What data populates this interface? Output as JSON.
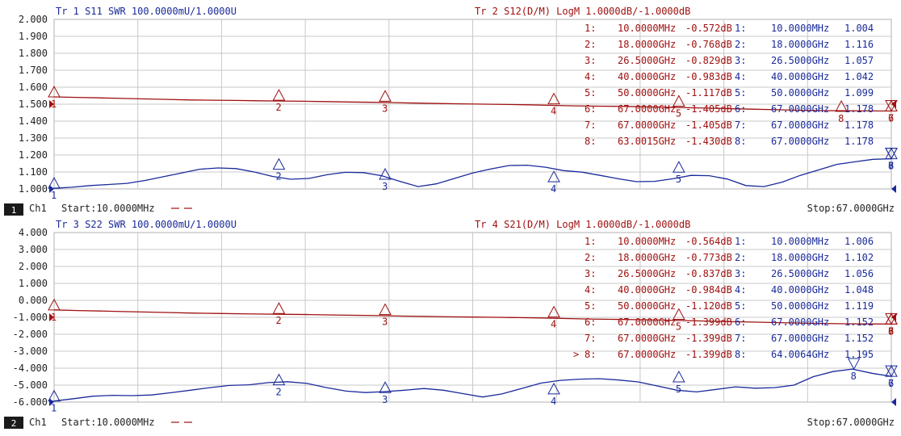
{
  "colors": {
    "trace_red": "#a01010",
    "trace_blue": "#1a2a9a",
    "grid": "#c8c8c8",
    "text": "#222222",
    "badge_bg": "#1a1a1a"
  },
  "channels": [
    {
      "channel_num": "1",
      "channel_label": "Ch1",
      "start_label": "Start:10.0000MHz",
      "stop_label": "Stop:67.0000GHz",
      "y_ticks": [
        "2.000",
        "1.900",
        "1.800",
        "1.700",
        "1.600",
        "1.500",
        "1.400",
        "1.300",
        "1.200",
        "1.100",
        "1.000"
      ],
      "trace_a": {
        "header": "Tr 1  S11 SWR 100.0000mU/1.0000U",
        "values": [
          1.004,
          1.01,
          1.02,
          1.026,
          1.033,
          1.05,
          1.072,
          1.094,
          1.116,
          1.124,
          1.12,
          1.1,
          1.074,
          1.057,
          1.062,
          1.084,
          1.098,
          1.096,
          1.078,
          1.045,
          1.014,
          1.03,
          1.062,
          1.094,
          1.118,
          1.138,
          1.14,
          1.128,
          1.108,
          1.099,
          1.08,
          1.06,
          1.043,
          1.045,
          1.06,
          1.08,
          1.078,
          1.058,
          1.02,
          1.014,
          1.04,
          1.08,
          1.112,
          1.145,
          1.16,
          1.175,
          1.178
        ]
      },
      "trace_b": {
        "header": "Tr 2  S12(D/M) LogM 1.0000dB/-1.0000dB",
        "values": [
          -0.572,
          -0.6,
          -0.63,
          -0.66,
          -0.69,
          -0.72,
          -0.75,
          -0.768,
          -0.78,
          -0.8,
          -0.815,
          -0.829,
          -0.85,
          -0.87,
          -0.89,
          -0.91,
          -0.94,
          -0.96,
          -0.983,
          -1.0,
          -1.02,
          -1.04,
          -1.07,
          -1.1,
          -1.117,
          -1.13,
          -1.15,
          -1.18,
          -1.21,
          -1.24,
          -1.27,
          -1.3,
          -1.33,
          -1.36,
          -1.38,
          -1.39,
          -1.4,
          -1.405
        ]
      },
      "markers_a_text": [
        {
          "num": "1:",
          "freq": "10.0000MHz",
          "val": "1.004"
        },
        {
          "num": "2:",
          "freq": "18.0000GHz",
          "val": "1.116"
        },
        {
          "num": "3:",
          "freq": "26.5000GHz",
          "val": "1.057"
        },
        {
          "num": "4:",
          "freq": "40.0000GHz",
          "val": "1.042"
        },
        {
          "num": "5:",
          "freq": "50.0000GHz",
          "val": "1.099"
        },
        {
          "num": "6:",
          "freq": "67.0000GHz",
          "val": "1.178"
        },
        {
          "num": "7:",
          "freq": "67.0000GHz",
          "val": "1.178"
        },
        {
          "num": "8:",
          "freq": "67.0000GHz",
          "val": "1.178"
        }
      ],
      "markers_b_text": [
        {
          "num": "1:",
          "freq": "10.0000MHz",
          "val": "-0.572dB"
        },
        {
          "num": "2:",
          "freq": "18.0000GHz",
          "val": "-0.768dB"
        },
        {
          "num": "3:",
          "freq": "26.5000GHz",
          "val": "-0.829dB"
        },
        {
          "num": "4:",
          "freq": "40.0000GHz",
          "val": "-0.983dB"
        },
        {
          "num": "5:",
          "freq": "50.0000GHz",
          "val": "-1.117dB"
        },
        {
          "num": "6:",
          "freq": "67.0000GHz",
          "val": "-1.405dB"
        },
        {
          "num": "7:",
          "freq": "67.0000GHz",
          "val": "-1.405dB"
        },
        {
          "num": "8:",
          "freq": "63.0015GHz",
          "val": "-1.430dB"
        }
      ],
      "markers_a_plot": [
        {
          "label": "1",
          "freq_ghz": 0.01,
          "value": 1.004
        },
        {
          "label": "2",
          "freq_ghz": 18,
          "value": 1.116
        },
        {
          "label": "3",
          "freq_ghz": 26.5,
          "value": 1.057
        },
        {
          "label": "4",
          "freq_ghz": 40,
          "value": 1.042
        },
        {
          "label": "5",
          "freq_ghz": 50,
          "value": 1.099
        },
        {
          "label": "6",
          "freq_ghz": 67,
          "value": 1.178
        },
        {
          "label": "7",
          "freq_ghz": 67,
          "value": 1.178
        },
        {
          "label": "8",
          "freq_ghz": 67,
          "value": 1.178
        }
      ],
      "markers_b_plot": [
        {
          "label": "1",
          "freq_ghz": 0.01,
          "value": -0.572
        },
        {
          "label": "2",
          "freq_ghz": 18,
          "value": -0.768
        },
        {
          "label": "3",
          "freq_ghz": 26.5,
          "value": -0.829
        },
        {
          "label": "4",
          "freq_ghz": 40,
          "value": -0.983
        },
        {
          "label": "5",
          "freq_ghz": 50,
          "value": -1.117
        },
        {
          "label": "6",
          "freq_ghz": 67,
          "value": -1.405
        },
        {
          "label": "7",
          "freq_ghz": 67,
          "value": -1.405
        },
        {
          "label": "8",
          "freq_ghz": 63.0015,
          "value": -1.43
        }
      ],
      "active_marker_b": ""
    },
    {
      "channel_num": "2",
      "channel_label": "Ch1",
      "start_label": "Start:10.0000MHz",
      "stop_label": "Stop:67.0000GHz",
      "y_ticks": [
        "4.000",
        "3.000",
        "2.000",
        "1.000",
        "0.000",
        "-1.000",
        "-2.000",
        "-3.000",
        "-4.000",
        "-5.000",
        "-6.000"
      ],
      "trace_a": {
        "header": "Tr 3  S22 SWR 100.0000mU/1.0000U",
        "values": [
          1.006,
          1.02,
          1.035,
          1.04,
          1.038,
          1.042,
          1.055,
          1.07,
          1.085,
          1.098,
          1.102,
          1.115,
          1.12,
          1.11,
          1.085,
          1.065,
          1.056,
          1.062,
          1.07,
          1.08,
          1.07,
          1.05,
          1.03,
          1.048,
          1.08,
          1.112,
          1.128,
          1.135,
          1.138,
          1.13,
          1.119,
          1.095,
          1.07,
          1.06,
          1.075,
          1.09,
          1.082,
          1.085,
          1.1,
          1.15,
          1.18,
          1.195,
          1.17,
          1.152
        ]
      },
      "trace_b": {
        "header": "Tr 4  S21(D/M) LogM 1.0000dB/-1.0000dB",
        "values": [
          -0.564,
          -0.6,
          -0.63,
          -0.66,
          -0.69,
          -0.72,
          -0.75,
          -0.773,
          -0.79,
          -0.81,
          -0.825,
          -0.837,
          -0.86,
          -0.88,
          -0.9,
          -0.93,
          -0.95,
          -0.97,
          -0.984,
          -1.0,
          -1.02,
          -1.04,
          -1.07,
          -1.1,
          -1.12,
          -1.14,
          -1.16,
          -1.19,
          -1.22,
          -1.25,
          -1.28,
          -1.31,
          -1.34,
          -1.36,
          -1.38,
          -1.39,
          -1.399
        ]
      },
      "markers_a_text": [
        {
          "num": "1:",
          "freq": "10.0000MHz",
          "val": "1.006"
        },
        {
          "num": "2:",
          "freq": "18.0000GHz",
          "val": "1.102"
        },
        {
          "num": "3:",
          "freq": "26.5000GHz",
          "val": "1.056"
        },
        {
          "num": "4:",
          "freq": "40.0000GHz",
          "val": "1.048"
        },
        {
          "num": "5:",
          "freq": "50.0000GHz",
          "val": "1.119"
        },
        {
          "num": "6:",
          "freq": "67.0000GHz",
          "val": "1.152"
        },
        {
          "num": "7:",
          "freq": "67.0000GHz",
          "val": "1.152"
        },
        {
          "num": "8:",
          "freq": "64.0064GHz",
          "val": "1.195"
        }
      ],
      "markers_b_text": [
        {
          "num": "1:",
          "freq": "10.0000MHz",
          "val": "-0.564dB"
        },
        {
          "num": "2:",
          "freq": "18.0000GHz",
          "val": "-0.773dB"
        },
        {
          "num": "3:",
          "freq": "26.5000GHz",
          "val": "-0.837dB"
        },
        {
          "num": "4:",
          "freq": "40.0000GHz",
          "val": "-0.984dB"
        },
        {
          "num": "5:",
          "freq": "50.0000GHz",
          "val": "-1.120dB"
        },
        {
          "num": "6:",
          "freq": "67.0000GHz",
          "val": "-1.399dB"
        },
        {
          "num": "7:",
          "freq": "67.0000GHz",
          "val": "-1.399dB"
        },
        {
          "num": "8:",
          "freq": "67.0000GHz",
          "val": "-1.399dB"
        }
      ],
      "markers_a_plot": [
        {
          "label": "1",
          "freq_ghz": 0.01,
          "value": 1.006
        },
        {
          "label": "2",
          "freq_ghz": 18,
          "value": 1.102
        },
        {
          "label": "3",
          "freq_ghz": 26.5,
          "value": 1.056
        },
        {
          "label": "4",
          "freq_ghz": 40,
          "value": 1.048
        },
        {
          "label": "5",
          "freq_ghz": 50,
          "value": 1.119
        },
        {
          "label": "6",
          "freq_ghz": 67,
          "value": 1.152
        },
        {
          "label": "7",
          "freq_ghz": 67,
          "value": 1.152
        },
        {
          "label": "8",
          "freq_ghz": 64.0064,
          "value": 1.195
        }
      ],
      "markers_b_plot": [
        {
          "label": "1",
          "freq_ghz": 0.01,
          "value": -0.564
        },
        {
          "label": "2",
          "freq_ghz": 18,
          "value": -0.773
        },
        {
          "label": "3",
          "freq_ghz": 26.5,
          "value": -0.837
        },
        {
          "label": "4",
          "freq_ghz": 40,
          "value": -0.984
        },
        {
          "label": "5",
          "freq_ghz": 50,
          "value": -1.12
        },
        {
          "label": "6",
          "freq_ghz": 67,
          "value": -1.399
        },
        {
          "label": "7",
          "freq_ghz": 67,
          "value": -1.399
        },
        {
          "label": "8",
          "freq_ghz": 67,
          "value": -1.399
        }
      ],
      "active_marker_b": ">"
    }
  ]
}
